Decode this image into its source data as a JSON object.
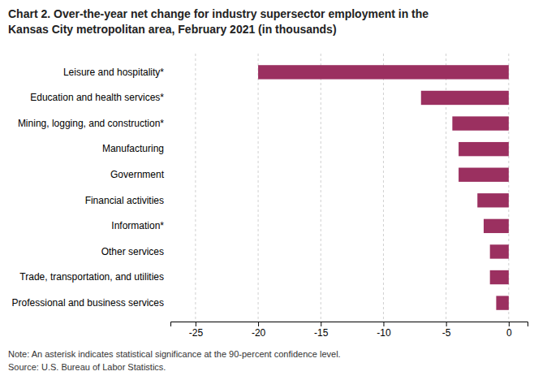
{
  "chart_data": {
    "type": "bar",
    "orientation": "horizontal",
    "title": [
      "Chart 2. Over-the-year net change for industry supersector employment in the",
      "Kansas City metropolitan area, February 2021 (in thousands)"
    ],
    "categories": [
      "Professional and business services",
      "Trade, transportation, and utilities",
      "Other services",
      "Information*",
      "Financial activities",
      "Government",
      "Manufacturing",
      "Mining, logging, and construction*",
      "Education and health services*",
      "Leisure and hospitality*"
    ],
    "values": [
      -1.0,
      -1.5,
      -1.5,
      -2.0,
      -2.5,
      -4.0,
      -4.0,
      -4.5,
      -7.0,
      -20.0
    ],
    "color": "#9b3060",
    "xlim": [
      -27,
      1.5
    ],
    "xticks": [
      -25,
      -20,
      -15,
      -10,
      -5,
      0
    ],
    "grid": true,
    "note": "Note: An asterisk indicates statistical significance at the 90-percent confidence level.",
    "source": "Source: U.S. Bureau of Labor Statistics."
  }
}
